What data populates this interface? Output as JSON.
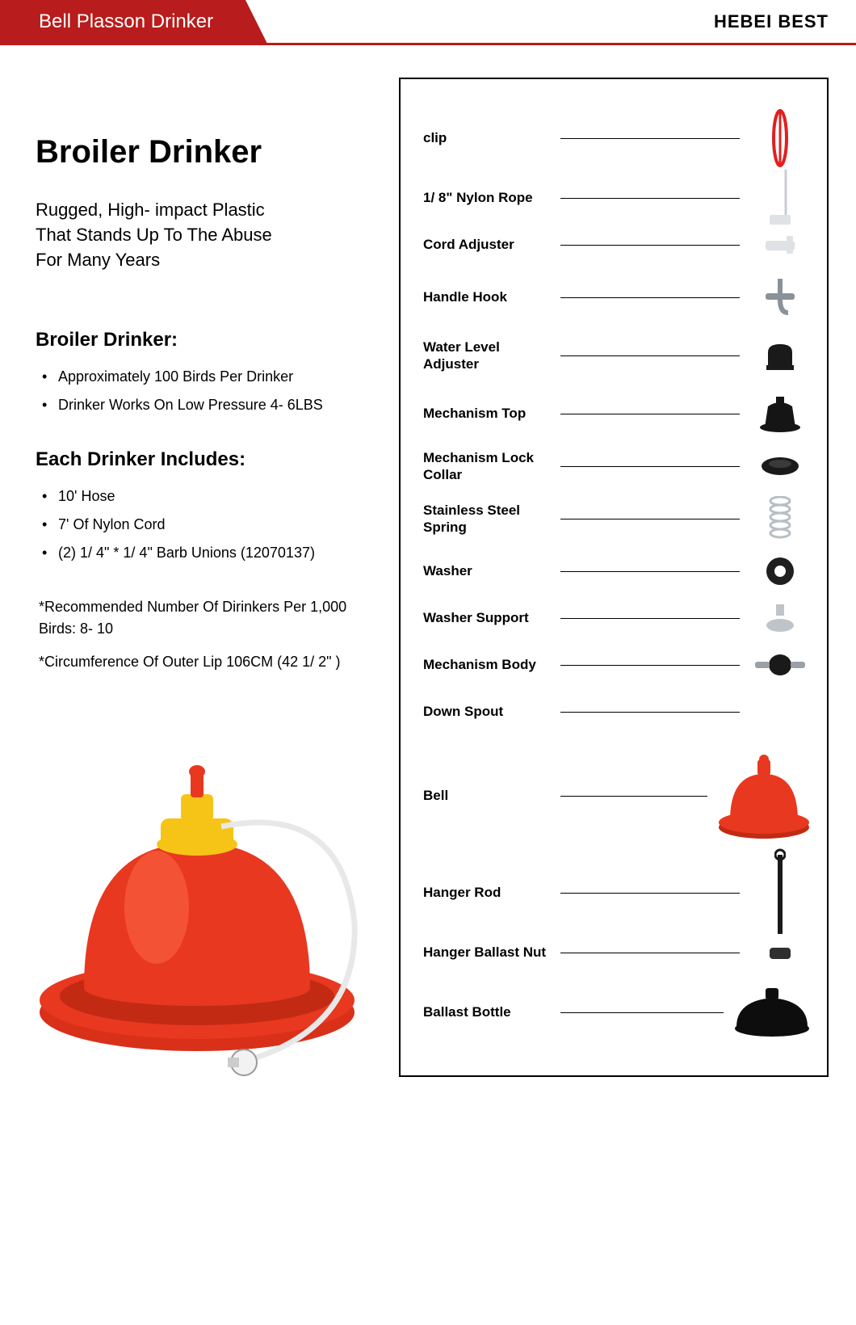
{
  "header": {
    "title": "Bell Plasson Drinker",
    "brand": "HEBEI BEST",
    "header_bg": "#b91c1c",
    "header_text_color": "#ffffff"
  },
  "main": {
    "title": "Broiler Drinker",
    "tagline": "Rugged, High- impact Plastic That Stands Up To The Abuse For Many Years",
    "section1_heading": "Broiler Drinker:",
    "section1_bullets": [
      "Approximately 100 Birds Per Drinker",
      "Drinker Works On Low Pressure 4- 6LBS"
    ],
    "section2_heading": "Each Drinker Includes:",
    "section2_bullets": [
      "10' Hose",
      "7' Of Nylon Cord",
      "(2) 1/ 4\" * 1/ 4\" Barb Unions (12070137)"
    ],
    "notes": [
      "*Recommended Number Of Dirinkers Per 1,000 Birds: 8- 10",
      "*Circumference Of Outer Lip 106CM (42 1/ 2\" )"
    ]
  },
  "product_colors": {
    "bell_red": "#e8381f",
    "cap_yellow": "#f5c416",
    "tube": "#e8e8e8",
    "connector": "#f2f2f2"
  },
  "parts": [
    {
      "label": "clip",
      "icon": "clip",
      "color": "#e02020",
      "size": "tall"
    },
    {
      "label": "1/ 8\" Nylon Rope",
      "icon": "rope",
      "color": "#c9ced3",
      "size": ""
    },
    {
      "label": "Cord Adjuster",
      "icon": "adjuster",
      "color": "#dfe2e5",
      "size": ""
    },
    {
      "label": "Handle Hook",
      "icon": "hook",
      "color": "#8a9299",
      "size": "med"
    },
    {
      "label": "Water Level Adjuster",
      "icon": "knob",
      "color": "#1a1a1a",
      "size": "med"
    },
    {
      "label": "Mechanism Top",
      "icon": "mechtop",
      "color": "#151515",
      "size": "med"
    },
    {
      "label": "Mechanism Lock Collar",
      "icon": "collar",
      "color": "#1a1a1a",
      "size": ""
    },
    {
      "label": "Stainless Steel Spring",
      "icon": "spring",
      "color": "#b8bfc4",
      "size": "med"
    },
    {
      "label": "Washer",
      "icon": "washer",
      "color": "#1f1f1f",
      "size": ""
    },
    {
      "label": "Washer Support",
      "icon": "wsupport",
      "color": "#bfc4c9",
      "size": ""
    },
    {
      "label": "Mechanism Body",
      "icon": "mechbody",
      "color": "#1a1a1a",
      "size": ""
    },
    {
      "label": "Down Spout",
      "icon": "none",
      "color": "#9aa0a6",
      "size": ""
    },
    {
      "label": "Bell",
      "icon": "bell",
      "color": "#e8381f",
      "size": "big"
    },
    {
      "label": "Hanger Rod",
      "icon": "rod",
      "color": "#1a1a1a",
      "size": "tall"
    },
    {
      "label": "Hanger Ballast Nut",
      "icon": "nut",
      "color": "#2f2f2f",
      "size": ""
    },
    {
      "label": "Ballast Bottle",
      "icon": "bottle",
      "color": "#0d0d0d",
      "size": "tall"
    }
  ]
}
